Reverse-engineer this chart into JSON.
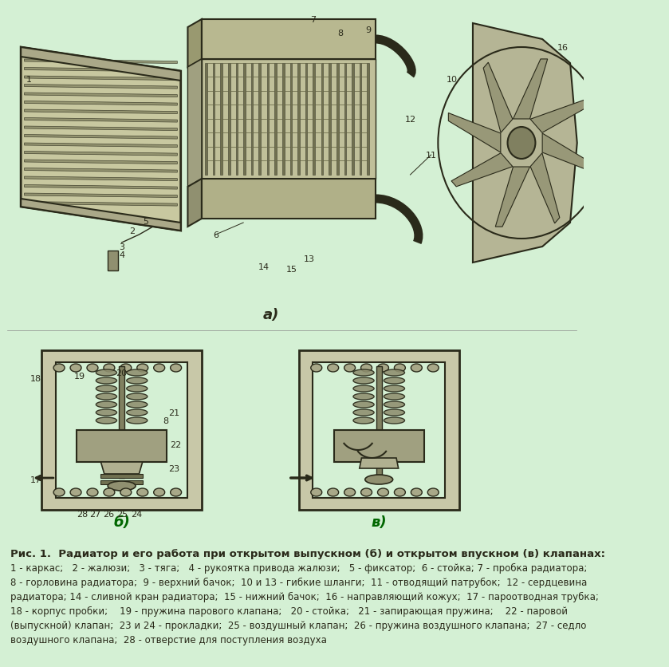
{
  "background_color": "#d4f0d4",
  "title_text": "Рис. 1.  Радиатор и его работа при открытом выпускном (б) и открытом впускном (в) клапанах:",
  "legend_lines": [
    "1 - каркас;   2 - жалюзи;   3 - тяга;   4 - рукоятка привода жалюзи;   5 - фиксатор;  6 - стойка; 7 - пробка радиатора;",
    "8 - горловина радиатора;  9 - верхний бачок;  10 и 13 - гибкие шланги;  11 - отводящий патрубок;  12 - сердцевина",
    "радиатора; 14 - сливной кран радиатора;  15 - нижний бачок;  16 - направляющий кожух;  17 - пароотводная трубка;",
    "18 - корпус пробки;    19 - пружина парового клапана;   20 - стойка;   21 - запирающая пружина;    22 - паровой",
    "(выпускной) клапан;  23 и 24 - прокладки;  25 - воздушный клапан;  26 - пружина воздушного клапана;  27 - седло",
    "воздушного клапана;  28 - отверстие для поступления воздуха"
  ],
  "label_a": "а)",
  "label_b": "б)",
  "label_v": "в)",
  "image_background": "#d4f0d4"
}
